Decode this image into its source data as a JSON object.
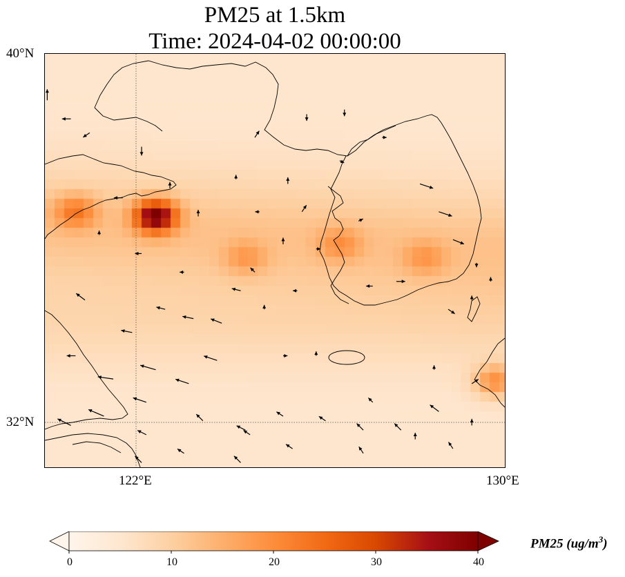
{
  "title_line1": "PM25 at 1.5km",
  "title_line2": "Time: 2024-04-02 00:00:00",
  "lat_labels": [
    "40°N",
    "32°N"
  ],
  "lon_labels": [
    "122°E",
    "130°E"
  ],
  "colorbar": {
    "label_text": "PM25 (ug/m",
    "label_sup": "3",
    "label_close": ")",
    "ticks": [
      "0",
      "10",
      "20",
      "30",
      "40"
    ],
    "colors": [
      "#fff5eb",
      "#fee6ce",
      "#fdd0a2",
      "#fdae6b",
      "#fd8d3c",
      "#f16913",
      "#d94801",
      "#a50f15",
      "#7f0000"
    ]
  },
  "map": {
    "lon_range": [
      120.25,
      130
    ],
    "lat_range": [
      31.1,
      40
    ],
    "hotspots": [
      {
        "lon": 122.6,
        "lat": 36.5,
        "value": 38
      },
      {
        "lon": 120.9,
        "lat": 36.6,
        "value": 20
      },
      {
        "lon": 129.8,
        "lat": 32.95,
        "value": 22
      },
      {
        "lon": 124.5,
        "lat": 35.6,
        "value": 15
      },
      {
        "lon": 126.5,
        "lat": 35.9,
        "value": 16
      },
      {
        "lon": 128.3,
        "lat": 35.6,
        "value": 15
      }
    ],
    "wind_vectors": [
      {
        "lon": 120.3,
        "lat": 39.0,
        "u": 0.0,
        "v": 0.5
      },
      {
        "lon": 120.8,
        "lat": 38.6,
        "u": -0.4,
        "v": 0.0
      },
      {
        "lon": 121.2,
        "lat": 38.3,
        "u": -0.3,
        "v": -0.2
      },
      {
        "lon": 122.3,
        "lat": 38.0,
        "u": 0.0,
        "v": -0.4
      },
      {
        "lon": 121.9,
        "lat": 36.9,
        "u": -0.4,
        "v": 0.0
      },
      {
        "lon": 122.3,
        "lat": 35.7,
        "u": -0.3,
        "v": 0.0
      },
      {
        "lon": 122.1,
        "lat": 34.0,
        "u": -0.5,
        "v": 0.1
      },
      {
        "lon": 121.1,
        "lat": 34.7,
        "u": -0.4,
        "v": 0.3
      },
      {
        "lon": 120.9,
        "lat": 33.5,
        "u": -0.4,
        "v": 0.0
      },
      {
        "lon": 121.7,
        "lat": 33.0,
        "u": -0.7,
        "v": 0.1
      },
      {
        "lon": 122.6,
        "lat": 33.2,
        "u": -0.7,
        "v": 0.2
      },
      {
        "lon": 122.4,
        "lat": 32.5,
        "u": -0.6,
        "v": 0.2
      },
      {
        "lon": 121.5,
        "lat": 32.2,
        "u": -0.7,
        "v": 0.3
      },
      {
        "lon": 120.8,
        "lat": 32.0,
        "u": -0.6,
        "v": 0.3
      },
      {
        "lon": 123.3,
        "lat": 32.9,
        "u": -0.6,
        "v": 0.2
      },
      {
        "lon": 123.9,
        "lat": 33.4,
        "u": -0.6,
        "v": 0.2
      },
      {
        "lon": 123.4,
        "lat": 34.3,
        "u": -0.5,
        "v": 0.1
      },
      {
        "lon": 124.0,
        "lat": 34.2,
        "u": -0.5,
        "v": 0.2
      },
      {
        "lon": 122.8,
        "lat": 34.5,
        "u": -0.4,
        "v": 0.1
      },
      {
        "lon": 124.4,
        "lat": 34.9,
        "u": -0.4,
        "v": 0.1
      },
      {
        "lon": 123.2,
        "lat": 35.3,
        "u": -0.2,
        "v": 0.0
      },
      {
        "lon": 124.7,
        "lat": 35.3,
        "u": -0.2,
        "v": 0.2
      },
      {
        "lon": 123.5,
        "lat": 36.5,
        "u": 0.0,
        "v": 0.3
      },
      {
        "lon": 124.8,
        "lat": 36.6,
        "u": -0.2,
        "v": 0.0
      },
      {
        "lon": 124.3,
        "lat": 37.3,
        "u": 0.0,
        "v": 0.2
      },
      {
        "lon": 125.4,
        "lat": 37.2,
        "u": 0.0,
        "v": 0.3
      },
      {
        "lon": 124.7,
        "lat": 38.2,
        "u": 0.2,
        "v": 0.3
      },
      {
        "lon": 125.8,
        "lat": 38.7,
        "u": 0.0,
        "v": -0.3
      },
      {
        "lon": 126.6,
        "lat": 38.8,
        "u": 0.0,
        "v": -0.3
      },
      {
        "lon": 127.4,
        "lat": 38.2,
        "u": 0.2,
        "v": 0.0
      },
      {
        "lon": 125.7,
        "lat": 36.6,
        "u": 0.2,
        "v": 0.3
      },
      {
        "lon": 126.5,
        "lat": 37.7,
        "u": 0.2,
        "v": -0.1
      },
      {
        "lon": 126.9,
        "lat": 36.4,
        "u": 0.2,
        "v": 0.1
      },
      {
        "lon": 128.2,
        "lat": 37.2,
        "u": 0.6,
        "v": -0.2
      },
      {
        "lon": 128.6,
        "lat": 36.6,
        "u": 0.6,
        "v": -0.2
      },
      {
        "lon": 128.9,
        "lat": 36.0,
        "u": 0.5,
        "v": -0.2
      },
      {
        "lon": 127.7,
        "lat": 35.1,
        "u": 0.4,
        "v": 0.0
      },
      {
        "lon": 127.2,
        "lat": 35.0,
        "u": -0.3,
        "v": 0.0
      },
      {
        "lon": 128.8,
        "lat": 34.5,
        "u": 0.3,
        "v": -0.2
      },
      {
        "lon": 128.5,
        "lat": 33.2,
        "u": 0.0,
        "v": 0.2
      },
      {
        "lon": 129.3,
        "lat": 32.9,
        "u": 0.3,
        "v": 0.2
      },
      {
        "lon": 128.6,
        "lat": 32.3,
        "u": -0.4,
        "v": 0.3
      },
      {
        "lon": 127.2,
        "lat": 32.5,
        "u": -0.2,
        "v": 0.2
      },
      {
        "lon": 127.0,
        "lat": 31.9,
        "u": -0.3,
        "v": 0.3
      },
      {
        "lon": 127.8,
        "lat": 31.9,
        "u": -0.3,
        "v": 0.3
      },
      {
        "lon": 128.1,
        "lat": 31.7,
        "u": 0.0,
        "v": 0.3
      },
      {
        "lon": 126.2,
        "lat": 32.1,
        "u": -0.3,
        "v": 0.2
      },
      {
        "lon": 125.3,
        "lat": 32.2,
        "u": -0.3,
        "v": 0.2
      },
      {
        "lon": 124.6,
        "lat": 31.8,
        "u": -0.3,
        "v": 0.2
      },
      {
        "lon": 123.6,
        "lat": 32.1,
        "u": -0.3,
        "v": 0.3
      },
      {
        "lon": 122.4,
        "lat": 31.8,
        "u": -0.4,
        "v": 0.2
      },
      {
        "lon": 123.2,
        "lat": 31.4,
        "u": -0.3,
        "v": 0.2
      },
      {
        "lon": 124.5,
        "lat": 31.9,
        "u": -0.4,
        "v": 0.2
      },
      {
        "lon": 125.5,
        "lat": 31.5,
        "u": -0.3,
        "v": 0.2
      },
      {
        "lon": 124.4,
        "lat": 31.2,
        "u": -0.3,
        "v": 0.3
      },
      {
        "lon": 122.3,
        "lat": 31.2,
        "u": -0.3,
        "v": 0.3
      },
      {
        "lon": 127.0,
        "lat": 31.4,
        "u": -0.2,
        "v": 0.3
      },
      {
        "lon": 128.9,
        "lat": 31.5,
        "u": -0.2,
        "v": 0.3
      },
      {
        "lon": 129.3,
        "lat": 32.0,
        "u": 0.0,
        "v": 0.3
      },
      {
        "lon": 126.0,
        "lat": 33.5,
        "u": 0.0,
        "v": 0.2
      },
      {
        "lon": 125.3,
        "lat": 33.5,
        "u": 0.2,
        "v": 0.0
      },
      {
        "lon": 124.9,
        "lat": 34.5,
        "u": 0.0,
        "v": 0.2
      },
      {
        "lon": 125.6,
        "lat": 34.9,
        "u": -0.2,
        "v": 0.0
      },
      {
        "lon": 129.3,
        "lat": 34.7,
        "u": 0.0,
        "v": 0.2
      },
      {
        "lon": 126.0,
        "lat": 35.8,
        "u": 0.2,
        "v": 0.0
      },
      {
        "lon": 125.3,
        "lat": 35.9,
        "u": 0.0,
        "v": 0.3
      },
      {
        "lon": 122.9,
        "lat": 37.1,
        "u": 0.0,
        "v": 0.3
      },
      {
        "lon": 121.4,
        "lat": 36.1,
        "u": 0.0,
        "v": 0.2
      },
      {
        "lon": 129.4,
        "lat": 35.5,
        "u": 0.0,
        "v": -0.2
      },
      {
        "lon": 129.7,
        "lat": 35.1,
        "u": 0.0,
        "v": 0.2
      }
    ]
  }
}
